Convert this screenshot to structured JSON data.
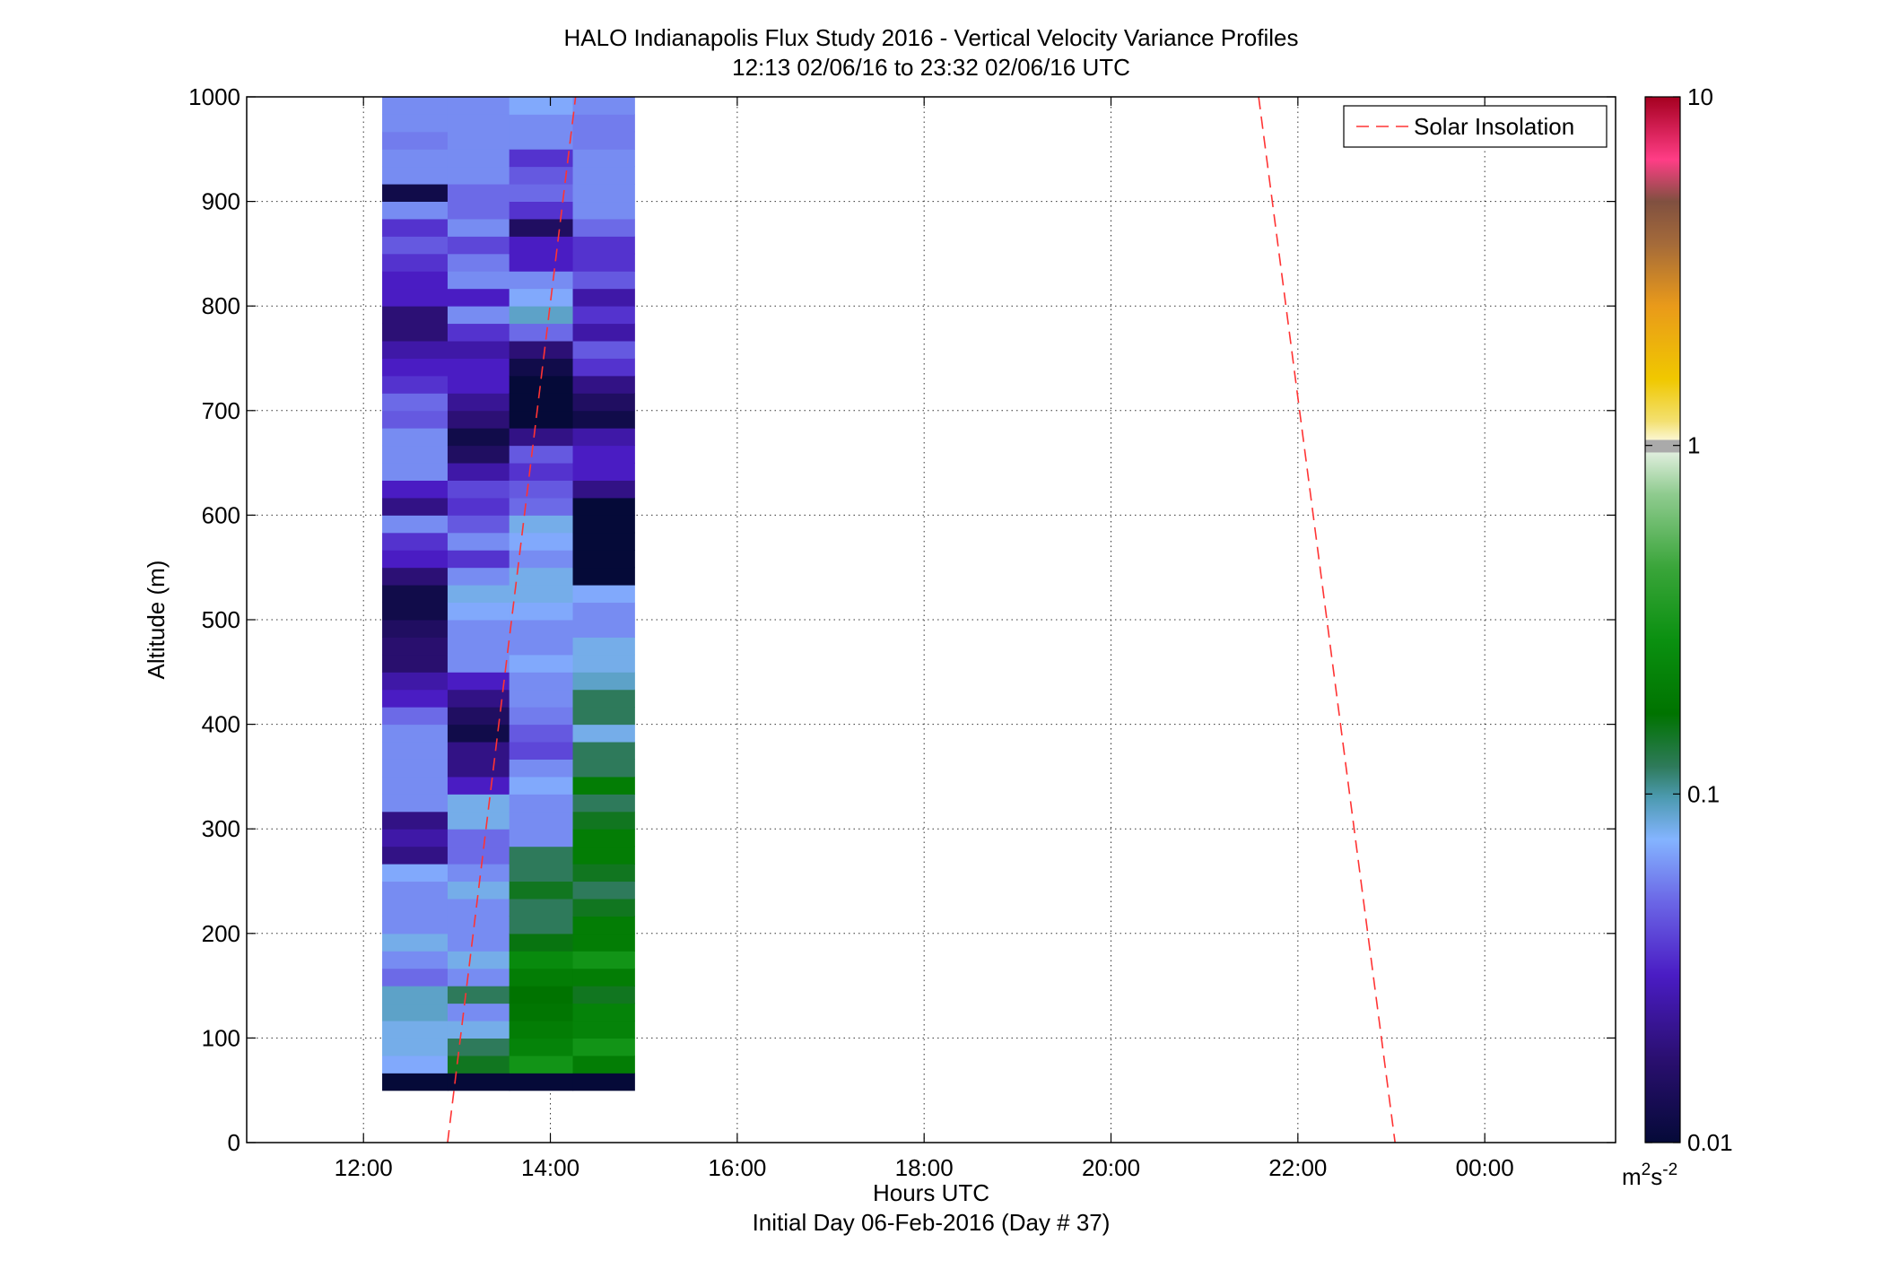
{
  "chart_data": {
    "type": "heatmap",
    "title": "HALO Indianapolis Flux Study 2016 - Vertical Velocity Variance Profiles",
    "subtitle": "12:13 02/06/16 to 23:32 02/06/16  UTC",
    "xlabel": "Hours UTC",
    "xlabel2": "Initial Day 06-Feb-2016 (Day # 37)",
    "ylabel": "Altitude (m)",
    "xlim": [
      10.75,
      25.4
    ],
    "ylim": [
      0,
      1000
    ],
    "x_ticks": [
      12,
      14,
      16,
      18,
      20,
      22,
      24
    ],
    "x_tick_labels": [
      "12:00",
      "14:00",
      "16:00",
      "18:00",
      "20:00",
      "22:00",
      "00:00"
    ],
    "y_ticks": [
      0,
      100,
      200,
      300,
      400,
      500,
      600,
      700,
      800,
      900,
      1000
    ],
    "y_tick_labels": [
      "0",
      "100",
      "200",
      "300",
      "400",
      "500",
      "600",
      "700",
      "800",
      "900",
      "1000"
    ],
    "grid": true,
    "legend": {
      "position": "top-right",
      "entries": [
        {
          "label": "Solar Insolation",
          "color": "#ff3333",
          "style": "dashed"
        }
      ]
    },
    "colorbar": {
      "scale": "log",
      "range": [
        0.01,
        10
      ],
      "ticks": [
        0.01,
        0.1,
        1,
        10
      ],
      "tick_labels": [
        "0.01",
        "0.1",
        "1",
        "10"
      ],
      "unit_base": "m",
      "unit_sup1": "2",
      "unit_mid": "s",
      "unit_sup2": "-2"
    },
    "heatmap": {
      "x_edges": [
        12.2,
        12.9,
        13.56,
        14.24,
        14.9
      ],
      "y_bottom": 50,
      "y_step": 16.67,
      "columns": [
        [
          0.01,
          0.07,
          0.08,
          0.08,
          0.09,
          0.09,
          0.05,
          0.06,
          0.08,
          0.06,
          0.06,
          0.06,
          0.07,
          0.02,
          0.025,
          0.02,
          0.06,
          0.06,
          0.06,
          0.06,
          0.06,
          0.05,
          0.03,
          0.025,
          0.017,
          0.017,
          0.015,
          0.012,
          0.012,
          0.018,
          0.03,
          0.035,
          0.06,
          0.02,
          0.03,
          0.06,
          0.06,
          0.06,
          0.045,
          0.05,
          0.035,
          0.03,
          0.025,
          0.018,
          0.018,
          0.03,
          0.03,
          0.035,
          0.045,
          0.035,
          0.06,
          0.012,
          0.06,
          0.06,
          0.055,
          0.06,
          0.06,
          0.05,
          0.06,
          0.08,
          0.06,
          0.08,
          0.04,
          0.07,
          0.06,
          0.07
        ],
        [
          0.01,
          0.15,
          0.12,
          0.08,
          0.06,
          0.12,
          0.06,
          0.08,
          0.06,
          0.06,
          0.06,
          0.08,
          0.06,
          0.05,
          0.05,
          0.08,
          0.08,
          0.03,
          0.02,
          0.02,
          0.012,
          0.015,
          0.02,
          0.03,
          0.06,
          0.06,
          0.06,
          0.07,
          0.08,
          0.06,
          0.035,
          0.06,
          0.045,
          0.035,
          0.04,
          0.025,
          0.015,
          0.012,
          0.018,
          0.022,
          0.03,
          0.03,
          0.025,
          0.035,
          0.06,
          0.03,
          0.06,
          0.055,
          0.04,
          0.06,
          0.05,
          0.05,
          0.06,
          0.06,
          0.06,
          0.06,
          0.06,
          0.06,
          0.12,
          0.12,
          0.06
        ],
        [
          0.01,
          0.3,
          0.22,
          0.2,
          0.18,
          0.17,
          0.2,
          0.25,
          0.16,
          0.12,
          0.12,
          0.15,
          0.12,
          0.12,
          0.06,
          0.06,
          0.06,
          0.07,
          0.06,
          0.04,
          0.045,
          0.055,
          0.06,
          0.06,
          0.07,
          0.06,
          0.06,
          0.07,
          0.08,
          0.08,
          0.06,
          0.07,
          0.08,
          0.05,
          0.045,
          0.035,
          0.045,
          0.02,
          0.01,
          0.01,
          0.01,
          0.012,
          0.018,
          0.05,
          0.09,
          0.07,
          0.06,
          0.03,
          0.03,
          0.015,
          0.035,
          0.05,
          0.045,
          0.035,
          0.06,
          0.06,
          0.07,
          0.06,
          0.06,
          0.08,
          0.025
        ],
        [
          0.01,
          0.2,
          0.3,
          0.22,
          0.22,
          0.15,
          0.2,
          0.3,
          0.2,
          0.2,
          0.15,
          0.12,
          0.15,
          0.2,
          0.2,
          0.15,
          0.12,
          0.2,
          0.12,
          0.12,
          0.08,
          0.12,
          0.12,
          0.09,
          0.08,
          0.08,
          0.06,
          0.06,
          0.07,
          0.01,
          0.01,
          0.01,
          0.01,
          0.01,
          0.02,
          0.03,
          0.03,
          0.025,
          0.012,
          0.015,
          0.02,
          0.035,
          0.045,
          0.025,
          0.035,
          0.025,
          0.045,
          0.035,
          0.035,
          0.05,
          0.06,
          0.06,
          0.06,
          0.06,
          0.055,
          0.055,
          0.06
        ]
      ]
    },
    "series": [
      {
        "name": "Solar Insolation",
        "x": [
          12.9,
          14.27
        ],
        "y": [
          0,
          1000
        ]
      },
      {
        "name": "Solar Insolation",
        "x": [
          21.58,
          23.04
        ],
        "y": [
          1000,
          0
        ]
      }
    ]
  }
}
